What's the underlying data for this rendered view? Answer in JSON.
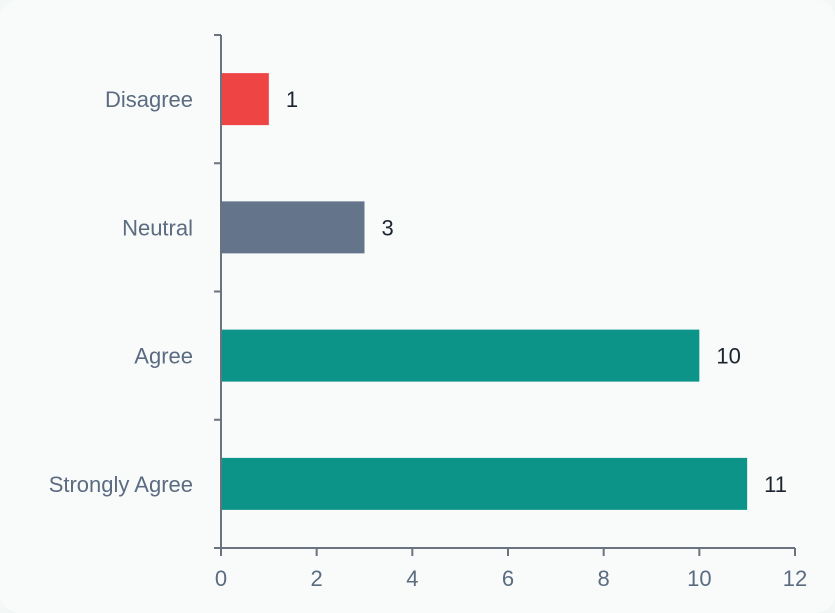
{
  "chart_data": {
    "type": "bar",
    "orientation": "horizontal",
    "categories": [
      "Disagree",
      "Neutral",
      "Agree",
      "Strongly Agree"
    ],
    "values": [
      1,
      3,
      10,
      11
    ],
    "colors": [
      "#ef4444",
      "#64748b",
      "#0d9488",
      "#0d9488"
    ],
    "xlim": [
      0,
      12
    ],
    "xticks": [
      "0",
      "2",
      "4",
      "6",
      "8",
      "10",
      "12"
    ],
    "title": "",
    "xlabel": "",
    "ylabel": "",
    "grid": false,
    "data_labels": true
  },
  "colors": {
    "axis": "#6b7280",
    "label": "#5b6b80",
    "value_label": "#1c2430",
    "background": "#f9fbfb"
  }
}
